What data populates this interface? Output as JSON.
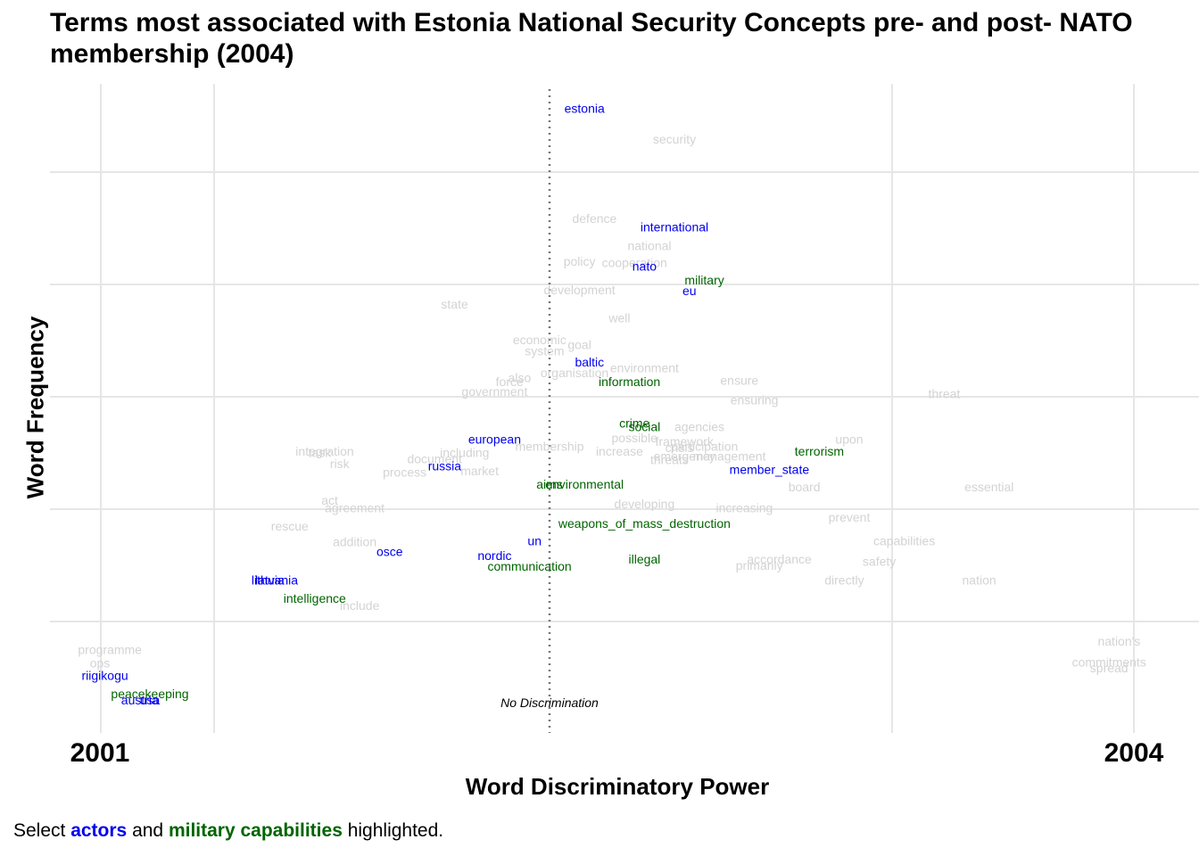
{
  "title_line1": "Terms most associated with Estonia National Security Concepts pre- and post- NATO",
  "title_line2": "membership (2004)",
  "caption": {
    "prefix": "Select ",
    "actors": "actors",
    "middle": " and ",
    "military": "military capabilities",
    "suffix": " highlighted."
  },
  "colors": {
    "actor": "#0000ee",
    "military": "#006400",
    "other": "#d3d3d3",
    "grid": "#e6e6e6",
    "refline": "#777777"
  },
  "chart_data": {
    "type": "scatter",
    "title": "Terms most associated with Estonia National Security Concepts pre- and post- NATO membership (2004)",
    "xlabel": "Word Discriminatory Power",
    "ylabel": "Word Frequency",
    "x_end_labels": [
      "2001",
      "2004"
    ],
    "annotation": "No Discrimination",
    "xlim": [
      -1.0,
      1.3
    ],
    "ylim": [
      0.0,
      5.3
    ],
    "grid": true,
    "no_discrimination_x": 0.0,
    "points": [
      {
        "term": "estonia",
        "x": 0.07,
        "y": 5.1,
        "group": "actor"
      },
      {
        "term": "security",
        "x": 0.25,
        "y": 4.85,
        "group": "other"
      },
      {
        "term": "defence",
        "x": 0.09,
        "y": 4.2,
        "group": "other"
      },
      {
        "term": "international",
        "x": 0.25,
        "y": 4.13,
        "group": "actor"
      },
      {
        "term": "national",
        "x": 0.2,
        "y": 3.98,
        "group": "other"
      },
      {
        "term": "policy",
        "x": 0.06,
        "y": 3.85,
        "group": "other"
      },
      {
        "term": "cooperation",
        "x": 0.17,
        "y": 3.84,
        "group": "other"
      },
      {
        "term": "nato",
        "x": 0.19,
        "y": 3.81,
        "group": "actor"
      },
      {
        "term": "military",
        "x": 0.31,
        "y": 3.7,
        "group": "military"
      },
      {
        "term": "eu",
        "x": 0.28,
        "y": 3.61,
        "group": "actor"
      },
      {
        "term": "development",
        "x": 0.06,
        "y": 3.62,
        "group": "other"
      },
      {
        "term": "state",
        "x": -0.19,
        "y": 3.5,
        "group": "other"
      },
      {
        "term": "well",
        "x": 0.14,
        "y": 3.39,
        "group": "other"
      },
      {
        "term": "economic",
        "x": -0.02,
        "y": 3.21,
        "group": "other"
      },
      {
        "term": "goal",
        "x": 0.06,
        "y": 3.17,
        "group": "other"
      },
      {
        "term": "system",
        "x": -0.01,
        "y": 3.12,
        "group": "other"
      },
      {
        "term": "baltic",
        "x": 0.08,
        "y": 3.03,
        "group": "actor"
      },
      {
        "term": "environment",
        "x": 0.19,
        "y": 2.98,
        "group": "other"
      },
      {
        "term": "organisation",
        "x": 0.05,
        "y": 2.94,
        "group": "other"
      },
      {
        "term": "also",
        "x": -0.06,
        "y": 2.9,
        "group": "other"
      },
      {
        "term": "force",
        "x": -0.08,
        "y": 2.87,
        "group": "other"
      },
      {
        "term": "information",
        "x": 0.16,
        "y": 2.87,
        "group": "military"
      },
      {
        "term": "ensure",
        "x": 0.38,
        "y": 2.88,
        "group": "other"
      },
      {
        "term": "threat",
        "x": 0.79,
        "y": 2.77,
        "group": "other"
      },
      {
        "term": "government",
        "x": -0.11,
        "y": 2.79,
        "group": "other"
      },
      {
        "term": "ensuring",
        "x": 0.41,
        "y": 2.72,
        "group": "other"
      },
      {
        "term": "crime",
        "x": 0.17,
        "y": 2.53,
        "group": "military"
      },
      {
        "term": "social",
        "x": 0.19,
        "y": 2.5,
        "group": "military"
      },
      {
        "term": "agencies",
        "x": 0.3,
        "y": 2.5,
        "group": "other"
      },
      {
        "term": "european",
        "x": -0.11,
        "y": 2.4,
        "group": "actor"
      },
      {
        "term": "possible",
        "x": 0.17,
        "y": 2.41,
        "group": "other"
      },
      {
        "term": "upon",
        "x": 0.6,
        "y": 2.4,
        "group": "other"
      },
      {
        "term": "framework",
        "x": 0.27,
        "y": 2.38,
        "group": "other"
      },
      {
        "term": "participation",
        "x": 0.31,
        "y": 2.34,
        "group": "other"
      },
      {
        "term": "membership",
        "x": 0.0,
        "y": 2.34,
        "group": "other"
      },
      {
        "term": "crisis",
        "x": 0.26,
        "y": 2.33,
        "group": "other"
      },
      {
        "term": "integration",
        "x": -0.45,
        "y": 2.3,
        "group": "other"
      },
      {
        "term": "task",
        "x": -0.46,
        "y": 2.29,
        "group": "other"
      },
      {
        "term": "including",
        "x": -0.17,
        "y": 2.29,
        "group": "other"
      },
      {
        "term": "increase",
        "x": 0.14,
        "y": 2.3,
        "group": "other"
      },
      {
        "term": "terrorism",
        "x": 0.54,
        "y": 2.3,
        "group": "military"
      },
      {
        "term": "emergency",
        "x": 0.27,
        "y": 2.26,
        "group": "other"
      },
      {
        "term": "management",
        "x": 0.36,
        "y": 2.26,
        "group": "other"
      },
      {
        "term": "threats",
        "x": 0.24,
        "y": 2.23,
        "group": "other"
      },
      {
        "term": "document",
        "x": -0.23,
        "y": 2.24,
        "group": "other"
      },
      {
        "term": "russia",
        "x": -0.21,
        "y": 2.18,
        "group": "actor"
      },
      {
        "term": "risk",
        "x": -0.42,
        "y": 2.2,
        "group": "other"
      },
      {
        "term": "process",
        "x": -0.29,
        "y": 2.13,
        "group": "other"
      },
      {
        "term": "market",
        "x": -0.14,
        "y": 2.14,
        "group": "other"
      },
      {
        "term": "member_state",
        "x": 0.44,
        "y": 2.15,
        "group": "actor"
      },
      {
        "term": "aims",
        "x": 0.0,
        "y": 2.03,
        "group": "military"
      },
      {
        "term": "environmental",
        "x": 0.07,
        "y": 2.03,
        "group": "military"
      },
      {
        "term": "board",
        "x": 0.51,
        "y": 2.01,
        "group": "other"
      },
      {
        "term": "essential",
        "x": 0.88,
        "y": 2.01,
        "group": "other"
      },
      {
        "term": "act",
        "x": -0.44,
        "y": 1.9,
        "group": "other"
      },
      {
        "term": "agreement",
        "x": -0.39,
        "y": 1.84,
        "group": "other"
      },
      {
        "term": "developing",
        "x": 0.19,
        "y": 1.87,
        "group": "other"
      },
      {
        "term": "increasing",
        "x": 0.39,
        "y": 1.84,
        "group": "other"
      },
      {
        "term": "prevent",
        "x": 0.6,
        "y": 1.76,
        "group": "other"
      },
      {
        "term": "weapons_of_mass_destruction",
        "x": 0.19,
        "y": 1.71,
        "group": "military"
      },
      {
        "term": "rescue",
        "x": -0.52,
        "y": 1.69,
        "group": "other"
      },
      {
        "term": "capabilities",
        "x": 0.71,
        "y": 1.57,
        "group": "other"
      },
      {
        "term": "addition",
        "x": -0.39,
        "y": 1.56,
        "group": "other"
      },
      {
        "term": "un",
        "x": -0.03,
        "y": 1.57,
        "group": "actor"
      },
      {
        "term": "osce",
        "x": -0.32,
        "y": 1.48,
        "group": "actor"
      },
      {
        "term": "nordic",
        "x": -0.11,
        "y": 1.45,
        "group": "actor"
      },
      {
        "term": "illegal",
        "x": 0.19,
        "y": 1.42,
        "group": "military"
      },
      {
        "term": "accordance",
        "x": 0.46,
        "y": 1.42,
        "group": "other"
      },
      {
        "term": "safety",
        "x": 0.66,
        "y": 1.4,
        "group": "other"
      },
      {
        "term": "communication",
        "x": -0.04,
        "y": 1.36,
        "group": "military"
      },
      {
        "term": "primarily",
        "x": 0.42,
        "y": 1.37,
        "group": "other"
      },
      {
        "term": "latvia",
        "x": -0.56,
        "y": 1.25,
        "group": "actor"
      },
      {
        "term": "lithuania",
        "x": -0.55,
        "y": 1.25,
        "group": "actor"
      },
      {
        "term": "directly",
        "x": 0.59,
        "y": 1.25,
        "group": "other"
      },
      {
        "term": "nation",
        "x": 0.86,
        "y": 1.25,
        "group": "other"
      },
      {
        "term": "intelligence",
        "x": -0.47,
        "y": 1.1,
        "group": "military"
      },
      {
        "term": "include",
        "x": -0.38,
        "y": 1.04,
        "group": "other"
      },
      {
        "term": "programme",
        "x": -0.88,
        "y": 0.68,
        "group": "other"
      },
      {
        "term": "ops",
        "x": -0.9,
        "y": 0.57,
        "group": "other"
      },
      {
        "term": "riigikogu",
        "x": -0.89,
        "y": 0.47,
        "group": "actor"
      },
      {
        "term": "peacekeeping",
        "x": -0.8,
        "y": 0.32,
        "group": "military"
      },
      {
        "term": "austria",
        "x": -0.82,
        "y": 0.27,
        "group": "actor"
      },
      {
        "term": "usa",
        "x": -0.8,
        "y": 0.27,
        "group": "actor"
      },
      {
        "term": "nation's",
        "x": 1.14,
        "y": 0.75,
        "group": "other"
      },
      {
        "term": "commitments",
        "x": 1.12,
        "y": 0.58,
        "group": "other"
      },
      {
        "term": "spread",
        "x": 1.12,
        "y": 0.53,
        "group": "other"
      }
    ]
  }
}
